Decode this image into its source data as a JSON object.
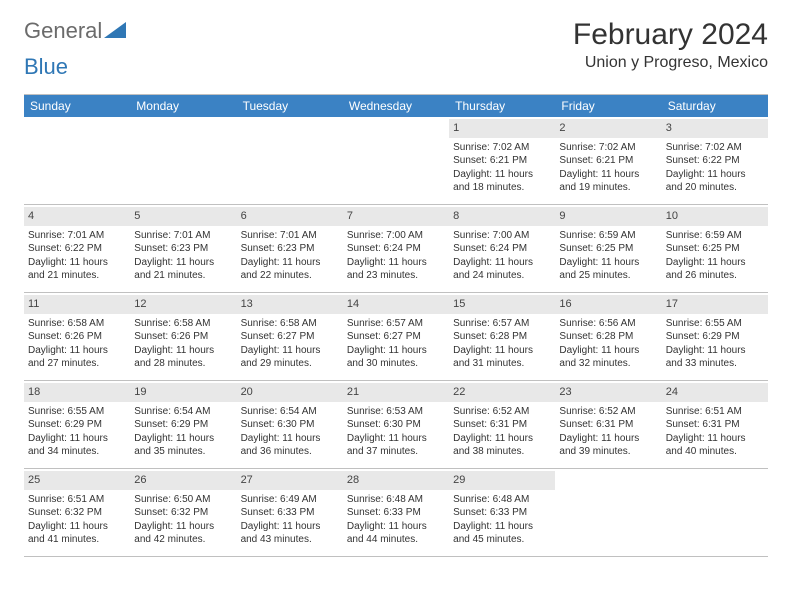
{
  "logo": {
    "part1": "General",
    "part2": "Blue"
  },
  "title": "February 2024",
  "location": "Union y Progreso, Mexico",
  "colors": {
    "header_bg": "#3b82c4",
    "header_text": "#ffffff",
    "date_bg": "#e8e8e8",
    "border": "#c0c0c0",
    "text": "#333333",
    "logo_gray": "#6b6b6b",
    "logo_blue": "#2f77b5"
  },
  "weekdays": [
    "Sunday",
    "Monday",
    "Tuesday",
    "Wednesday",
    "Thursday",
    "Friday",
    "Saturday"
  ],
  "leading_blanks": 4,
  "days": [
    {
      "n": "1",
      "sunrise": "Sunrise: 7:02 AM",
      "sunset": "Sunset: 6:21 PM",
      "daylight": "Daylight: 11 hours and 18 minutes."
    },
    {
      "n": "2",
      "sunrise": "Sunrise: 7:02 AM",
      "sunset": "Sunset: 6:21 PM",
      "daylight": "Daylight: 11 hours and 19 minutes."
    },
    {
      "n": "3",
      "sunrise": "Sunrise: 7:02 AM",
      "sunset": "Sunset: 6:22 PM",
      "daylight": "Daylight: 11 hours and 20 minutes."
    },
    {
      "n": "4",
      "sunrise": "Sunrise: 7:01 AM",
      "sunset": "Sunset: 6:22 PM",
      "daylight": "Daylight: 11 hours and 21 minutes."
    },
    {
      "n": "5",
      "sunrise": "Sunrise: 7:01 AM",
      "sunset": "Sunset: 6:23 PM",
      "daylight": "Daylight: 11 hours and 21 minutes."
    },
    {
      "n": "6",
      "sunrise": "Sunrise: 7:01 AM",
      "sunset": "Sunset: 6:23 PM",
      "daylight": "Daylight: 11 hours and 22 minutes."
    },
    {
      "n": "7",
      "sunrise": "Sunrise: 7:00 AM",
      "sunset": "Sunset: 6:24 PM",
      "daylight": "Daylight: 11 hours and 23 minutes."
    },
    {
      "n": "8",
      "sunrise": "Sunrise: 7:00 AM",
      "sunset": "Sunset: 6:24 PM",
      "daylight": "Daylight: 11 hours and 24 minutes."
    },
    {
      "n": "9",
      "sunrise": "Sunrise: 6:59 AM",
      "sunset": "Sunset: 6:25 PM",
      "daylight": "Daylight: 11 hours and 25 minutes."
    },
    {
      "n": "10",
      "sunrise": "Sunrise: 6:59 AM",
      "sunset": "Sunset: 6:25 PM",
      "daylight": "Daylight: 11 hours and 26 minutes."
    },
    {
      "n": "11",
      "sunrise": "Sunrise: 6:58 AM",
      "sunset": "Sunset: 6:26 PM",
      "daylight": "Daylight: 11 hours and 27 minutes."
    },
    {
      "n": "12",
      "sunrise": "Sunrise: 6:58 AM",
      "sunset": "Sunset: 6:26 PM",
      "daylight": "Daylight: 11 hours and 28 minutes."
    },
    {
      "n": "13",
      "sunrise": "Sunrise: 6:58 AM",
      "sunset": "Sunset: 6:27 PM",
      "daylight": "Daylight: 11 hours and 29 minutes."
    },
    {
      "n": "14",
      "sunrise": "Sunrise: 6:57 AM",
      "sunset": "Sunset: 6:27 PM",
      "daylight": "Daylight: 11 hours and 30 minutes."
    },
    {
      "n": "15",
      "sunrise": "Sunrise: 6:57 AM",
      "sunset": "Sunset: 6:28 PM",
      "daylight": "Daylight: 11 hours and 31 minutes."
    },
    {
      "n": "16",
      "sunrise": "Sunrise: 6:56 AM",
      "sunset": "Sunset: 6:28 PM",
      "daylight": "Daylight: 11 hours and 32 minutes."
    },
    {
      "n": "17",
      "sunrise": "Sunrise: 6:55 AM",
      "sunset": "Sunset: 6:29 PM",
      "daylight": "Daylight: 11 hours and 33 minutes."
    },
    {
      "n": "18",
      "sunrise": "Sunrise: 6:55 AM",
      "sunset": "Sunset: 6:29 PM",
      "daylight": "Daylight: 11 hours and 34 minutes."
    },
    {
      "n": "19",
      "sunrise": "Sunrise: 6:54 AM",
      "sunset": "Sunset: 6:29 PM",
      "daylight": "Daylight: 11 hours and 35 minutes."
    },
    {
      "n": "20",
      "sunrise": "Sunrise: 6:54 AM",
      "sunset": "Sunset: 6:30 PM",
      "daylight": "Daylight: 11 hours and 36 minutes."
    },
    {
      "n": "21",
      "sunrise": "Sunrise: 6:53 AM",
      "sunset": "Sunset: 6:30 PM",
      "daylight": "Daylight: 11 hours and 37 minutes."
    },
    {
      "n": "22",
      "sunrise": "Sunrise: 6:52 AM",
      "sunset": "Sunset: 6:31 PM",
      "daylight": "Daylight: 11 hours and 38 minutes."
    },
    {
      "n": "23",
      "sunrise": "Sunrise: 6:52 AM",
      "sunset": "Sunset: 6:31 PM",
      "daylight": "Daylight: 11 hours and 39 minutes."
    },
    {
      "n": "24",
      "sunrise": "Sunrise: 6:51 AM",
      "sunset": "Sunset: 6:31 PM",
      "daylight": "Daylight: 11 hours and 40 minutes."
    },
    {
      "n": "25",
      "sunrise": "Sunrise: 6:51 AM",
      "sunset": "Sunset: 6:32 PM",
      "daylight": "Daylight: 11 hours and 41 minutes."
    },
    {
      "n": "26",
      "sunrise": "Sunrise: 6:50 AM",
      "sunset": "Sunset: 6:32 PM",
      "daylight": "Daylight: 11 hours and 42 minutes."
    },
    {
      "n": "27",
      "sunrise": "Sunrise: 6:49 AM",
      "sunset": "Sunset: 6:33 PM",
      "daylight": "Daylight: 11 hours and 43 minutes."
    },
    {
      "n": "28",
      "sunrise": "Sunrise: 6:48 AM",
      "sunset": "Sunset: 6:33 PM",
      "daylight": "Daylight: 11 hours and 44 minutes."
    },
    {
      "n": "29",
      "sunrise": "Sunrise: 6:48 AM",
      "sunset": "Sunset: 6:33 PM",
      "daylight": "Daylight: 11 hours and 45 minutes."
    }
  ],
  "trailing_blanks": 2
}
